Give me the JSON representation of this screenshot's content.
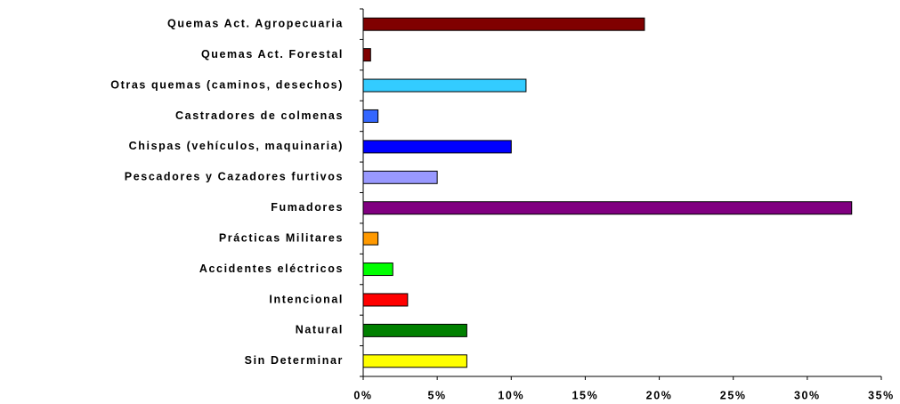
{
  "chart_data": {
    "type": "barh",
    "categories": [
      "Quemas Act. Agropecuaria",
      "Quemas Act. Forestal",
      "Otras quemas (caminos, desechos)",
      "Castradores de colmenas",
      "Chispas (vehículos, maquinaria)",
      "Pescadores y Cazadores furtivos",
      "Fumadores",
      "Prácticas Militares",
      "Accidentes eléctricos",
      "Intencional",
      "Natural",
      "Sin Determinar"
    ],
    "values": [
      19,
      0.5,
      11,
      1,
      10,
      5,
      33,
      1,
      2,
      3,
      7,
      7
    ],
    "colors": [
      "#800000",
      "#800000",
      "#33ccff",
      "#3366ff",
      "#0000ff",
      "#9999ff",
      "#800080",
      "#ff9900",
      "#00ff00",
      "#ff0000",
      "#008000",
      "#ffff00"
    ],
    "xlim": [
      0,
      35
    ],
    "xticks": [
      {
        "value": 0,
        "label": "0%"
      },
      {
        "value": 5,
        "label": "5%"
      },
      {
        "value": 10,
        "label": "10%"
      },
      {
        "value": 15,
        "label": "15%"
      },
      {
        "value": 20,
        "label": "20%"
      },
      {
        "value": 25,
        "label": "25%"
      },
      {
        "value": 30,
        "label": "30%"
      },
      {
        "value": 35,
        "label": "35%"
      }
    ]
  }
}
